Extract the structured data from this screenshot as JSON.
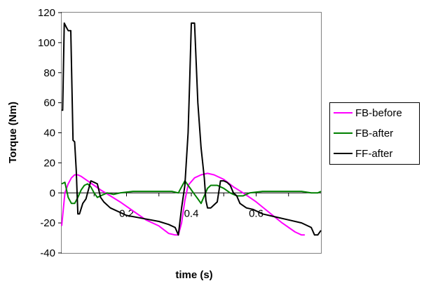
{
  "chart_data": {
    "type": "line",
    "title": "",
    "xlabel": "time (s)",
    "ylabel": "Torque (Nm)",
    "xlim": [
      0,
      0.8
    ],
    "ylim": [
      -40,
      120
    ],
    "yticks": [
      -40,
      -20,
      0,
      20,
      40,
      60,
      80,
      100,
      120
    ],
    "xticks": [
      0.2,
      0.4,
      0.6
    ],
    "x_tick_labels": [
      "0.2",
      "0.4",
      "0.6"
    ],
    "y_tick_labels": [
      "-40",
      "-20",
      "0",
      "20",
      "40",
      "60",
      "80",
      "100",
      "120"
    ],
    "grid": false,
    "legend_position": "right",
    "series": [
      {
        "name": "FB-before",
        "color": "#ff00ff",
        "points": [
          [
            0,
            -22
          ],
          [
            0.01,
            0
          ],
          [
            0.02,
            6
          ],
          [
            0.03,
            10
          ],
          [
            0.04,
            12
          ],
          [
            0.05,
            12
          ],
          [
            0.06,
            11
          ],
          [
            0.08,
            8
          ],
          [
            0.1,
            5
          ],
          [
            0.12,
            2
          ],
          [
            0.15,
            -2
          ],
          [
            0.18,
            -6
          ],
          [
            0.22,
            -12
          ],
          [
            0.26,
            -18
          ],
          [
            0.3,
            -22
          ],
          [
            0.33,
            -27
          ],
          [
            0.35,
            -28
          ],
          [
            0.36,
            -28
          ],
          [
            0.37,
            -20
          ],
          [
            0.38,
            -5
          ],
          [
            0.39,
            5
          ],
          [
            0.41,
            10
          ],
          [
            0.43,
            12
          ],
          [
            0.45,
            13
          ],
          [
            0.47,
            12
          ],
          [
            0.5,
            9
          ],
          [
            0.53,
            4
          ],
          [
            0.56,
            0
          ],
          [
            0.6,
            -6
          ],
          [
            0.64,
            -13
          ],
          [
            0.68,
            -20
          ],
          [
            0.72,
            -26
          ],
          [
            0.74,
            -28
          ],
          [
            0.75,
            -28
          ]
        ]
      },
      {
        "name": "FB-after",
        "color": "#008000",
        "points": [
          [
            0,
            6
          ],
          [
            0.01,
            7
          ],
          [
            0.02,
            -3
          ],
          [
            0.03,
            -7
          ],
          [
            0.04,
            -7
          ],
          [
            0.05,
            -3
          ],
          [
            0.06,
            2
          ],
          [
            0.07,
            5
          ],
          [
            0.08,
            6
          ],
          [
            0.09,
            4
          ],
          [
            0.1,
            0
          ],
          [
            0.11,
            -3
          ],
          [
            0.12,
            -2
          ],
          [
            0.14,
            0
          ],
          [
            0.16,
            -1
          ],
          [
            0.18,
            0
          ],
          [
            0.22,
            1
          ],
          [
            0.26,
            1
          ],
          [
            0.3,
            1
          ],
          [
            0.34,
            1
          ],
          [
            0.36,
            0
          ],
          [
            0.37,
            4
          ],
          [
            0.38,
            8
          ],
          [
            0.39,
            5
          ],
          [
            0.4,
            2
          ],
          [
            0.41,
            -1
          ],
          [
            0.42,
            -4
          ],
          [
            0.43,
            -7
          ],
          [
            0.44,
            -2
          ],
          [
            0.45,
            3
          ],
          [
            0.46,
            5
          ],
          [
            0.48,
            5
          ],
          [
            0.5,
            3
          ],
          [
            0.52,
            0
          ],
          [
            0.54,
            -2
          ],
          [
            0.56,
            -2
          ],
          [
            0.58,
            0
          ],
          [
            0.62,
            1
          ],
          [
            0.66,
            1
          ],
          [
            0.7,
            1
          ],
          [
            0.74,
            1
          ],
          [
            0.77,
            0
          ],
          [
            0.79,
            0
          ],
          [
            0.8,
            1
          ]
        ]
      },
      {
        "name": "FF-after",
        "color": "#000000",
        "points": [
          [
            0,
            55
          ],
          [
            0.003,
            55
          ],
          [
            0.008,
            113
          ],
          [
            0.015,
            110
          ],
          [
            0.02,
            108
          ],
          [
            0.028,
            108
          ],
          [
            0.035,
            35
          ],
          [
            0.04,
            34
          ],
          [
            0.045,
            15
          ],
          [
            0.05,
            -14
          ],
          [
            0.055,
            -14
          ],
          [
            0.065,
            -7
          ],
          [
            0.075,
            -4
          ],
          [
            0.09,
            8
          ],
          [
            0.1,
            7
          ],
          [
            0.11,
            6
          ],
          [
            0.12,
            -3
          ],
          [
            0.13,
            -6
          ],
          [
            0.15,
            -10
          ],
          [
            0.2,
            -15
          ],
          [
            0.25,
            -17
          ],
          [
            0.3,
            -19
          ],
          [
            0.33,
            -21
          ],
          [
            0.35,
            -23
          ],
          [
            0.36,
            -28
          ],
          [
            0.37,
            -10
          ],
          [
            0.38,
            5
          ],
          [
            0.39,
            40
          ],
          [
            0.395,
            75
          ],
          [
            0.4,
            113
          ],
          [
            0.41,
            113
          ],
          [
            0.42,
            60
          ],
          [
            0.43,
            30
          ],
          [
            0.44,
            10
          ],
          [
            0.445,
            -5
          ],
          [
            0.45,
            -10
          ],
          [
            0.46,
            -10
          ],
          [
            0.47,
            -8
          ],
          [
            0.48,
            -6
          ],
          [
            0.49,
            8
          ],
          [
            0.5,
            8
          ],
          [
            0.51,
            7
          ],
          [
            0.52,
            5
          ],
          [
            0.53,
            0
          ],
          [
            0.54,
            -2
          ],
          [
            0.55,
            -7
          ],
          [
            0.57,
            -10
          ],
          [
            0.59,
            -11
          ],
          [
            0.62,
            -14
          ],
          [
            0.66,
            -16
          ],
          [
            0.7,
            -18
          ],
          [
            0.74,
            -20
          ],
          [
            0.77,
            -23
          ],
          [
            0.78,
            -28
          ],
          [
            0.79,
            -28
          ],
          [
            0.8,
            -25
          ]
        ]
      }
    ]
  }
}
